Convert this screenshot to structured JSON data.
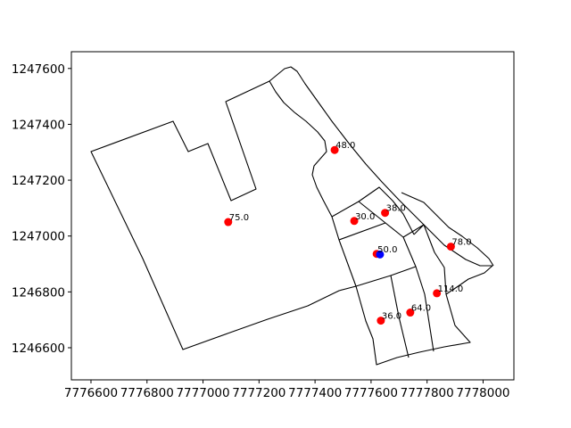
{
  "chart_data": {
    "type": "scatter",
    "title": "",
    "xlabel": "",
    "ylabel": "",
    "xlim": [
      7776530,
      7778110
    ],
    "ylim": [
      1246485,
      1247660
    ],
    "x_ticks": [
      {
        "value": 7776600,
        "label": "7776600"
      },
      {
        "value": 7776800,
        "label": "7776800"
      },
      {
        "value": 7777000,
        "label": "7777000"
      },
      {
        "value": 7777200,
        "label": "7777200"
      },
      {
        "value": 7777400,
        "label": "7777400"
      },
      {
        "value": 7777600,
        "label": "7777600"
      },
      {
        "value": 7777800,
        "label": "7777800"
      },
      {
        "value": 7778000,
        "label": "7778000"
      }
    ],
    "y_ticks": [
      {
        "value": 1246600,
        "label": "1246600"
      },
      {
        "value": 1246800,
        "label": "1246800"
      },
      {
        "value": 1247000,
        "label": "1247000"
      },
      {
        "value": 1247200,
        "label": "1247200"
      },
      {
        "value": 1247400,
        "label": "1247400"
      },
      {
        "value": 1247600,
        "label": "1247600"
      }
    ],
    "grid": false,
    "series": [
      {
        "color": "#ff0000",
        "points": [
          {
            "x": 7777090,
            "y": 1247050,
            "label": "75.0"
          },
          {
            "x": 7777470,
            "y": 1247308,
            "label": "48.0"
          },
          {
            "x": 7777540,
            "y": 1247054,
            "label": "30.0"
          },
          {
            "x": 7777650,
            "y": 1247083,
            "label": "38.0"
          },
          {
            "x": 7777620,
            "y": 1246936,
            "label": "50.0"
          },
          {
            "x": 7777885,
            "y": 1246962,
            "label": "78.0"
          },
          {
            "x": 7777835,
            "y": 1246795,
            "label": "114.0"
          },
          {
            "x": 7777740,
            "y": 1246726,
            "label": "64.0"
          },
          {
            "x": 7777635,
            "y": 1246697,
            "label": "36.0"
          }
        ]
      },
      {
        "color": "#0000ff",
        "points": [
          {
            "x": 7777632,
            "y": 1246934,
            "label": ""
          }
        ]
      }
    ],
    "polygons": [
      [
        [
          7776600,
          1247300
        ],
        [
          7776890,
          1247410
        ],
        [
          7776930,
          1247300
        ],
        [
          7777020,
          1247330
        ],
        [
          7777090,
          1247130
        ],
        [
          7777185,
          1247170
        ],
        [
          7777040,
          1247485
        ],
        [
          7777180,
          1247550
        ],
        [
          7777320,
          1247600
        ],
        [
          7777360,
          1247530
        ],
        [
          7777480,
          1247350
        ],
        [
          7777460,
          1247290
        ],
        [
          7777420,
          1247100
        ],
        [
          7777470,
          1246920
        ],
        [
          7777560,
          1246870
        ],
        [
          7777600,
          1246820
        ],
        [
          7777660,
          1246760
        ],
        [
          7777740,
          1246690
        ],
        [
          7777800,
          1246660
        ],
        [
          7777830,
          1246660
        ],
        [
          7777800,
          1246600
        ],
        [
          7777660,
          1246560
        ],
        [
          7777580,
          1246550
        ],
        [
          7777520,
          1246620
        ],
        [
          7777400,
          1246700
        ],
        [
          7777000,
          1246780
        ],
        [
          7776920,
          1246590
        ],
        [
          7776700,
          1246980
        ]
      ],
      [
        [
          7777180,
          1247550
        ],
        [
          7777200,
          1247490
        ],
        [
          7777250,
          1247420
        ],
        [
          7777300,
          1247380
        ],
        [
          7777390,
          1247330
        ],
        [
          7777430,
          1247320
        ],
        [
          7777460,
          1247290
        ],
        [
          7777440,
          1247250
        ],
        [
          7777470,
          1247200
        ],
        [
          7777510,
          1247150
        ],
        [
          7777560,
          1247080
        ],
        [
          7777620,
          1247110
        ],
        [
          7777680,
          1247140
        ],
        [
          7777700,
          1247100
        ],
        [
          7777770,
          1247040
        ],
        [
          7777820,
          1246980
        ],
        [
          7777900,
          1246940
        ],
        [
          7777950,
          1246910
        ],
        [
          7778030,
          1246880
        ],
        [
          7777970,
          1246830
        ],
        [
          7777930,
          1246800
        ],
        [
          7777890,
          1246790
        ],
        [
          7777850,
          1246760
        ],
        [
          7777800,
          1246700
        ],
        [
          7777770,
          1246670
        ],
        [
          7777860,
          1246640
        ],
        [
          7777950,
          1246620
        ],
        [
          7777940,
          1246750
        ],
        [
          7777870,
          1246800
        ],
        [
          7777860,
          1246820
        ]
      ]
    ]
  }
}
